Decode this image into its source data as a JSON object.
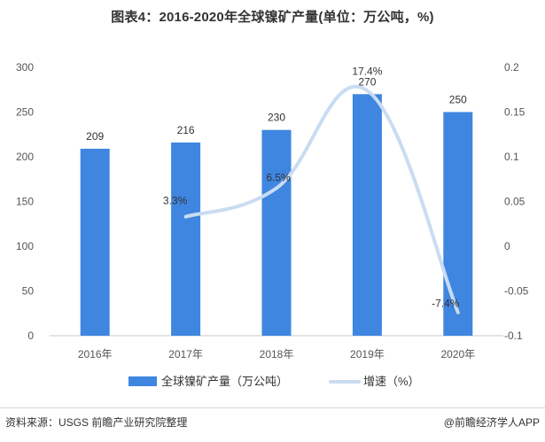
{
  "chart_data": {
    "type": "bar",
    "title": "图表4：2016-2020年全球镍矿产量(单位：万公吨，%)",
    "categories": [
      "2016年",
      "2017年",
      "2018年",
      "2019年",
      "2020年"
    ],
    "series": [
      {
        "name": "全球镍矿产量（万公吨）",
        "type": "bar",
        "axis": "left",
        "color": "#3f86e0",
        "values": [
          209,
          216,
          230,
          270,
          250
        ],
        "data_labels": [
          "209",
          "216",
          "230",
          "270",
          "250"
        ]
      },
      {
        "name": "增速（%）",
        "type": "line",
        "axis": "right",
        "color": "#c9dcf2",
        "values": [
          null,
          0.033,
          0.065,
          0.174,
          -0.074
        ],
        "data_labels": [
          "",
          "3.3%",
          "6.5%",
          "17.4%",
          "-7.4%"
        ]
      }
    ],
    "y_left": {
      "ylim": [
        0,
        300
      ],
      "ticks": [
        "0",
        "50",
        "100",
        "150",
        "200",
        "250",
        "300"
      ]
    },
    "y_right": {
      "ylim": [
        -0.1,
        0.2
      ],
      "ticks": [
        "-0.1",
        "-0.05",
        "0",
        "0.05",
        "0.1",
        "0.15",
        "0.2"
      ]
    },
    "xlabel": "",
    "ylabel": "",
    "grid": false,
    "legend_position": "bottom"
  },
  "footer": {
    "source": "资料来源：USGS 前瞻产业研究院整理",
    "brand": "@前瞻经济学人APP"
  }
}
